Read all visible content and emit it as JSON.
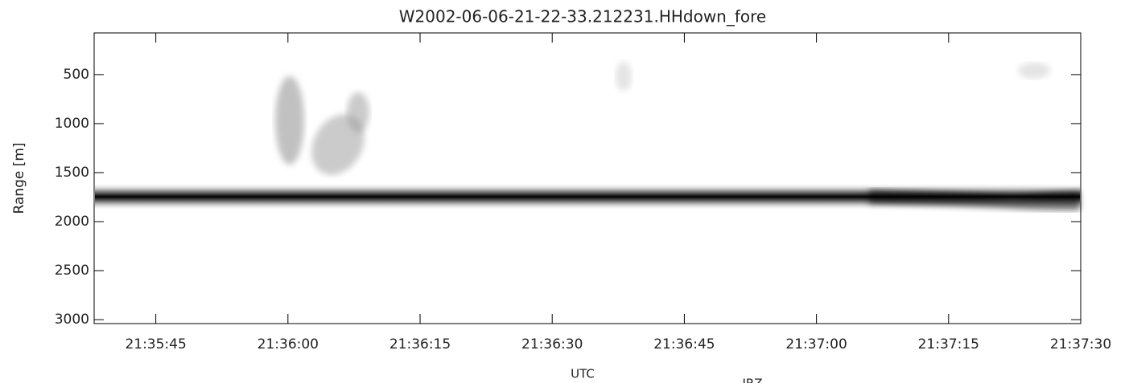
{
  "chart_data": {
    "type": "radar-image",
    "title": "W2002-06-06-21-22-33.212231.HHdown_fore",
    "x_label": "UTC",
    "y_label": "Range [m]",
    "colorbar_label": "IRZ",
    "xlim": [
      "21:35:38",
      "21:37:30"
    ],
    "xticks": [
      "21:35:45",
      "21:36:00",
      "21:36:15",
      "21:36:30",
      "21:36:45",
      "21:37:00",
      "21:37:15",
      "21:37:30"
    ],
    "ylim": [
      75,
      3040
    ],
    "y_inverted": true,
    "yticks": [
      500,
      1000,
      1500,
      2000,
      2500,
      3000
    ]
  }
}
